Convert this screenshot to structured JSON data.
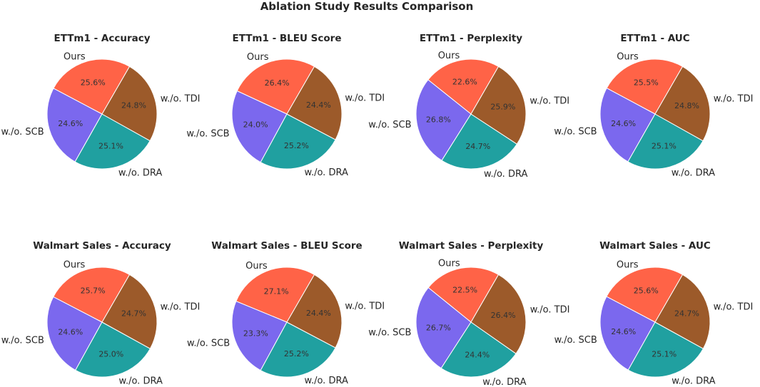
{
  "figure": {
    "title": "Ablation Study Results Comparison"
  },
  "colors": {
    "Ours": "#ff6347",
    "w./o. SCB": "#7b68ee",
    "w./o. DRA": "#20a0a0",
    "w./o. TDI": "#9c5a2a"
  },
  "chart_data": [
    {
      "type": "pie",
      "title": "ETTm1 - Accuracy",
      "labels": [
        "Ours",
        "w./o. SCB",
        "w./o. DRA",
        "w./o. TDI"
      ],
      "values": [
        25.6,
        24.6,
        25.1,
        24.8
      ],
      "value_labels": [
        "25.6%",
        "24.6%",
        "25.1%",
        "24.8%"
      ]
    },
    {
      "type": "pie",
      "title": "ETTm1 - BLEU Score",
      "labels": [
        "Ours",
        "w./o. SCB",
        "w./o. DRA",
        "w./o. TDI"
      ],
      "values": [
        26.4,
        24.0,
        25.2,
        24.4
      ],
      "value_labels": [
        "26.4%",
        "24.0%",
        "25.2%",
        "24.4%"
      ]
    },
    {
      "type": "pie",
      "title": "ETTm1 - Perplexity",
      "labels": [
        "Ours",
        "w./o. SCB",
        "w./o. DRA",
        "w./o. TDI"
      ],
      "values": [
        22.6,
        26.8,
        24.7,
        25.9
      ],
      "value_labels": [
        "22.6%",
        "26.8%",
        "24.7%",
        "25.9%"
      ]
    },
    {
      "type": "pie",
      "title": "ETTm1 - AUC",
      "labels": [
        "Ours",
        "w./o. SCB",
        "w./o. DRA",
        "w./o. TDI"
      ],
      "values": [
        25.5,
        24.6,
        25.1,
        24.8
      ],
      "value_labels": [
        "25.5%",
        "24.6%",
        "25.1%",
        "24.8%"
      ]
    },
    {
      "type": "pie",
      "title": "Walmart Sales - Accuracy",
      "labels": [
        "Ours",
        "w./o. SCB",
        "w./o. DRA",
        "w./o. TDI"
      ],
      "values": [
        25.7,
        24.6,
        25.0,
        24.7
      ],
      "value_labels": [
        "25.7%",
        "24.6%",
        "25.0%",
        "24.7%"
      ]
    },
    {
      "type": "pie",
      "title": "Walmart Sales - BLEU Score",
      "labels": [
        "Ours",
        "w./o. SCB",
        "w./o. DRA",
        "w./o. TDI"
      ],
      "values": [
        27.1,
        23.3,
        25.2,
        24.4
      ],
      "value_labels": [
        "27.1%",
        "23.3%",
        "25.2%",
        "24.4%"
      ]
    },
    {
      "type": "pie",
      "title": "Walmart Sales - Perplexity",
      "labels": [
        "Ours",
        "w./o. SCB",
        "w./o. DRA",
        "w./o. TDI"
      ],
      "values": [
        22.5,
        26.7,
        24.4,
        26.4
      ],
      "value_labels": [
        "22.5%",
        "26.7%",
        "24.4%",
        "26.4%"
      ]
    },
    {
      "type": "pie",
      "title": "Walmart Sales - AUC",
      "labels": [
        "Ours",
        "w./o. SCB",
        "w./o. DRA",
        "w./o. TDI"
      ],
      "values": [
        25.6,
        24.6,
        25.1,
        24.7
      ],
      "value_labels": [
        "25.6%",
        "24.6%",
        "25.1%",
        "24.7%"
      ]
    }
  ]
}
